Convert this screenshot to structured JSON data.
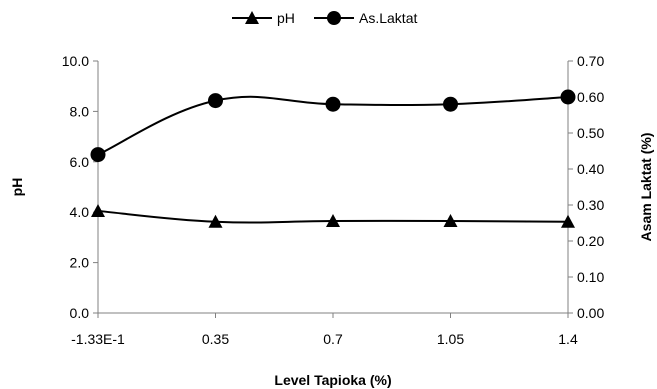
{
  "chart_data": {
    "type": "line",
    "title": "",
    "xlabel": "Level Tapioka (%)",
    "ylabel": "pH",
    "y2label": "Asam Laktat (%)",
    "categories": [
      "-1.33E-1",
      "0.35",
      "0.7",
      "1.05",
      "1.4"
    ],
    "ylim": [
      0,
      10
    ],
    "yticks": [
      "0.0",
      "2.0",
      "4.0",
      "6.0",
      "8.0",
      "10.0"
    ],
    "y2lim": [
      0,
      0.7
    ],
    "y2ticks": [
      "0.00",
      "0.10",
      "0.20",
      "0.30",
      "0.40",
      "0.50",
      "0.60",
      "0.70"
    ],
    "grid": false,
    "legend_position": "top",
    "series": [
      {
        "name": "pH",
        "axis": "left",
        "marker": "triangle",
        "color": "#000000",
        "values": [
          4.05,
          3.62,
          3.65,
          3.65,
          3.62
        ]
      },
      {
        "name": "As.Laktat",
        "axis": "right",
        "marker": "circle",
        "color": "#000000",
        "values": [
          0.44,
          0.59,
          0.58,
          0.58,
          0.6
        ]
      }
    ]
  }
}
